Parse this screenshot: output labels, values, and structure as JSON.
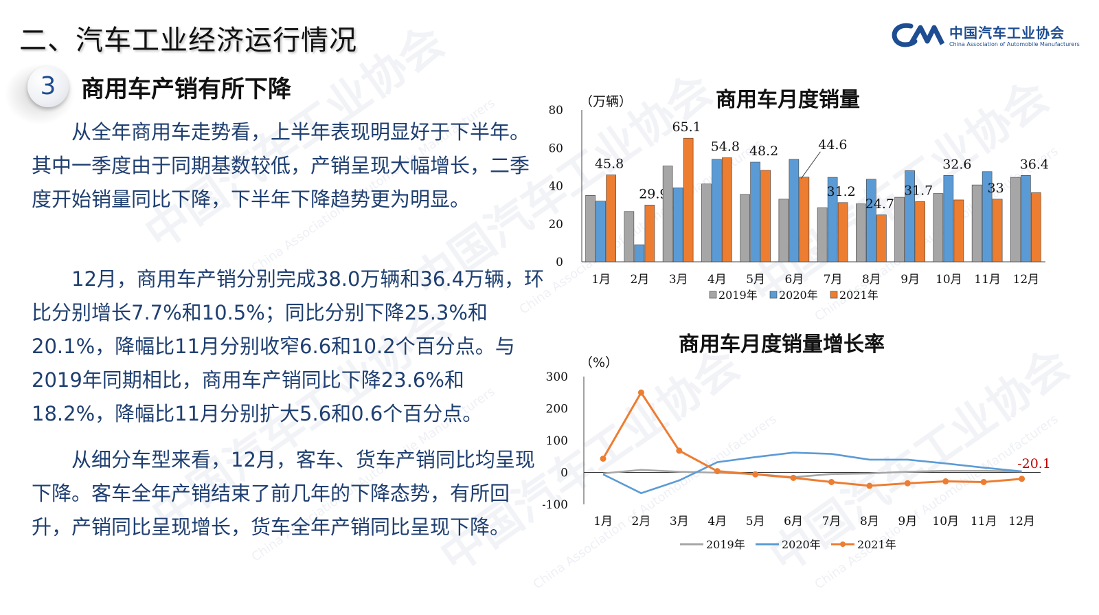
{
  "page": {
    "title": "二、汽车工业经济运行情况",
    "section_number": "3",
    "section_title": "商用车产销有所下降"
  },
  "logo": {
    "cn": "中国汽车工业协会",
    "en": "China Association of Automobile Manufacturers",
    "mark": "CAM"
  },
  "paragraphs": [
    "从全年商用车走势看，上半年表现明显好于下半年。其中一季度由于同期基数较低，产销呈现大幅增长，二季度开始销量同比下降，下半年下降趋势更为明显。",
    "12月，商用车产销分别完成38.0万辆和36.4万辆，环比分别增长7.7%和10.5%；同比分别下降25.3%和20.1%，降幅比11月分别收窄6.6和10.2个百分点。与2019年同期相比，商用车产销同比下降23.6%和18.2%，降幅比11月分别扩大5.6和0.6个百分点。",
    "从细分车型来看，12月，客车、货车产销同比均呈现下降。客车全年产销结束了前几年的下降态势，有所回升，产销同比呈现增长，货车全年产销同比呈现下降。"
  ],
  "chart_data": [
    {
      "type": "bar",
      "title": "商用车月度销量",
      "ylabel": "（万辆）",
      "ylim": [
        0,
        80
      ],
      "yticks": [
        0,
        20,
        40,
        60,
        80
      ],
      "categories": [
        "1月",
        "2月",
        "3月",
        "4月",
        "5月",
        "6月",
        "7月",
        "8月",
        "9月",
        "10月",
        "11月",
        "12月"
      ],
      "series": [
        {
          "name": "2019年",
          "color": "#a6a6a6",
          "values": [
            35,
            26.5,
            50.5,
            41,
            35.5,
            33,
            28.5,
            30.5,
            34,
            36,
            40.5,
            44.5
          ]
        },
        {
          "name": "2020年",
          "color": "#5b9bd5",
          "values": [
            32,
            9,
            39,
            54,
            52.5,
            54,
            44.5,
            43.5,
            48,
            45.5,
            47.5,
            45.5
          ]
        },
        {
          "name": "2021年",
          "color": "#ed7d31",
          "values": [
            45.8,
            29.9,
            65.1,
            54.8,
            48.2,
            44.6,
            31.2,
            24.7,
            31.7,
            32.6,
            33,
            36.4
          ]
        }
      ],
      "data_labels": [
        "45.8",
        "29.9",
        "65.1",
        "54.8",
        "48.2",
        "44.6",
        "31.2",
        "24.7",
        "31.7",
        "32.6",
        "33",
        "36.4"
      ],
      "legend": "bottom"
    },
    {
      "type": "line",
      "title": "商用车月度销量增长率",
      "ylabel": "（%）",
      "ylim": [
        -100,
        300
      ],
      "yticks": [
        -100,
        0,
        100,
        200,
        300
      ],
      "categories": [
        "1月",
        "2月",
        "3月",
        "4月",
        "5月",
        "6月",
        "7月",
        "8月",
        "9月",
        "10月",
        "11月",
        "12月"
      ],
      "series": [
        {
          "name": "2019年",
          "color": "#a6a6a6",
          "values": [
            -3,
            8,
            2,
            -1,
            -5,
            -15,
            -5,
            -3,
            2,
            5,
            5,
            3
          ]
        },
        {
          "name": "2020年",
          "color": "#5b9bd5",
          "values": [
            -6,
            -65,
            -25,
            32,
            48,
            62,
            58,
            40,
            40,
            28,
            15,
            3
          ]
        },
        {
          "name": "2021年",
          "color": "#ed7d31",
          "values": [
            43,
            250,
            68,
            4,
            -6,
            -17,
            -30,
            -42,
            -34,
            -28,
            -30,
            -20.1
          ]
        }
      ],
      "end_label": "-20.1",
      "legend": "bottom"
    }
  ]
}
